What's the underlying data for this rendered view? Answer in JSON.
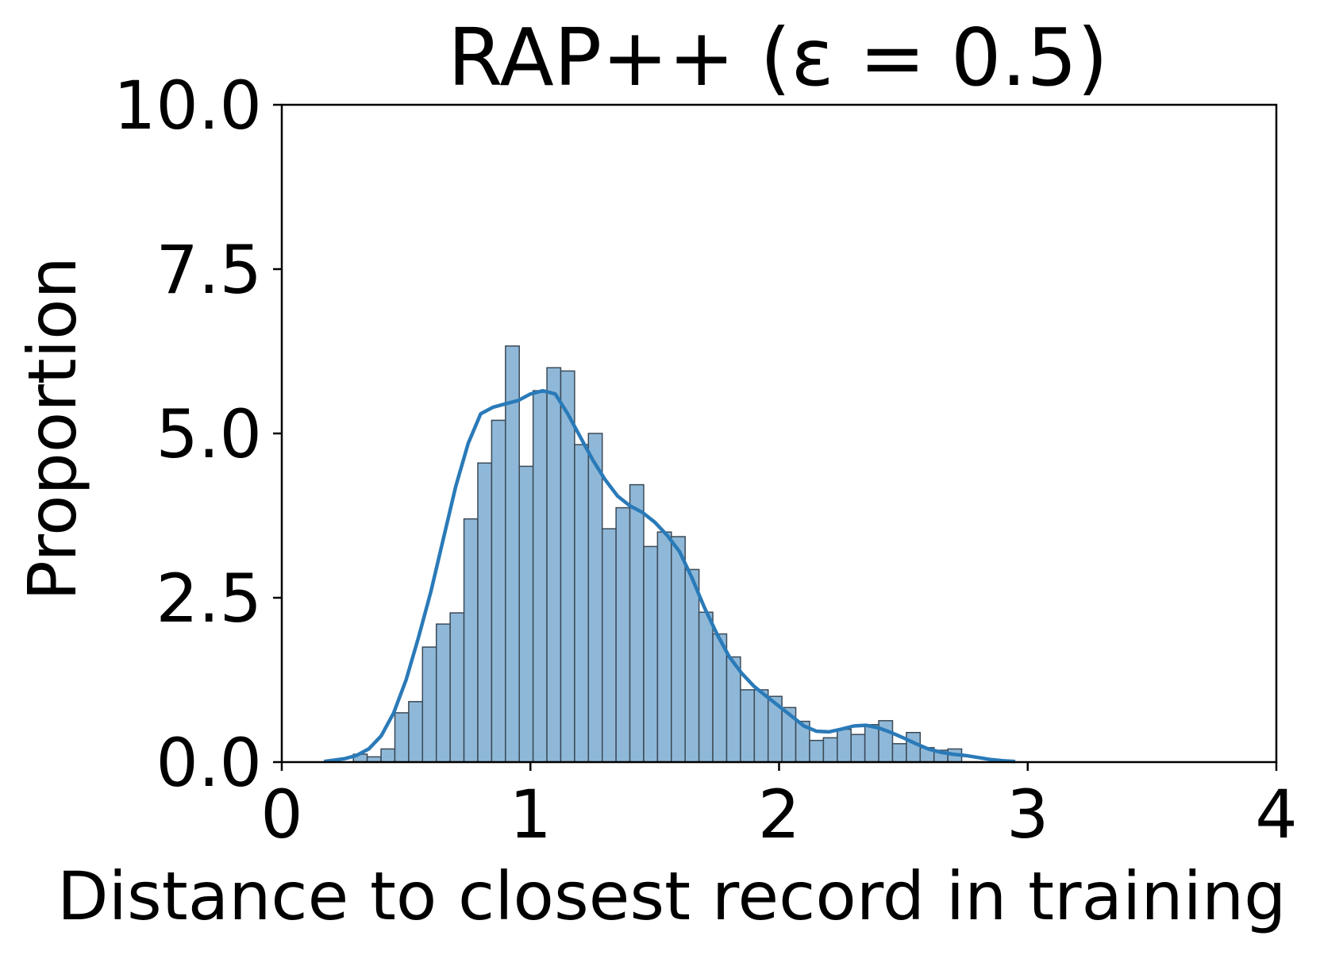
{
  "chart_data": {
    "type": "bar",
    "title": "RAP++ (ε = 0.5)",
    "xlabel": "Distance to closest record in training",
    "ylabel": "Proportion",
    "xlim": [
      0,
      4
    ],
    "ylim": [
      0,
      10
    ],
    "x_ticks": [
      "0",
      "1",
      "2",
      "3",
      "4"
    ],
    "y_ticks": [
      "0.0",
      "2.5",
      "5.0",
      "7.5",
      "10.0"
    ],
    "grid": false,
    "legend": "none",
    "colors": {
      "bar_fill": "#8fb8d8",
      "bar_edge": "#3b4a57",
      "kde_line": "#2a7ab8"
    },
    "bins": {
      "bin_edges_start": 0.288,
      "bin_width": 0.0556,
      "values": [
        0.12,
        0.08,
        0.2,
        0.75,
        0.92,
        1.75,
        2.1,
        2.27,
        3.7,
        4.55,
        5.2,
        6.33,
        4.5,
        5.65,
        6.0,
        5.95,
        4.83,
        5.0,
        3.55,
        3.87,
        4.22,
        3.28,
        3.5,
        3.43,
        2.93,
        2.28,
        1.95,
        1.6,
        1.1,
        1.1,
        1.0,
        0.83,
        0.62,
        0.33,
        0.37,
        0.5,
        0.42,
        0.57,
        0.63,
        0.28,
        0.45,
        0.22,
        0.18,
        0.2
      ]
    },
    "kde": {
      "x": [
        0.17,
        0.25,
        0.3,
        0.35,
        0.4,
        0.45,
        0.5,
        0.55,
        0.6,
        0.65,
        0.7,
        0.75,
        0.8,
        0.85,
        0.9,
        0.95,
        1.0,
        1.05,
        1.1,
        1.15,
        1.2,
        1.25,
        1.3,
        1.35,
        1.4,
        1.45,
        1.5,
        1.55,
        1.6,
        1.65,
        1.7,
        1.75,
        1.8,
        1.85,
        1.9,
        1.95,
        2.0,
        2.05,
        2.1,
        2.15,
        2.2,
        2.25,
        2.3,
        2.35,
        2.4,
        2.45,
        2.5,
        2.55,
        2.6,
        2.65,
        2.7,
        2.75,
        2.8,
        2.85,
        2.9,
        2.95
      ],
      "y": [
        0.01,
        0.05,
        0.1,
        0.2,
        0.4,
        0.75,
        1.25,
        1.9,
        2.6,
        3.4,
        4.2,
        4.85,
        5.3,
        5.4,
        5.45,
        5.5,
        5.6,
        5.65,
        5.6,
        5.3,
        4.95,
        4.6,
        4.3,
        4.05,
        3.9,
        3.8,
        3.65,
        3.45,
        3.2,
        2.8,
        2.35,
        1.95,
        1.6,
        1.35,
        1.15,
        1.0,
        0.85,
        0.7,
        0.55,
        0.47,
        0.46,
        0.5,
        0.55,
        0.56,
        0.52,
        0.45,
        0.37,
        0.28,
        0.2,
        0.15,
        0.12,
        0.1,
        0.07,
        0.04,
        0.02,
        0.01
      ]
    }
  }
}
